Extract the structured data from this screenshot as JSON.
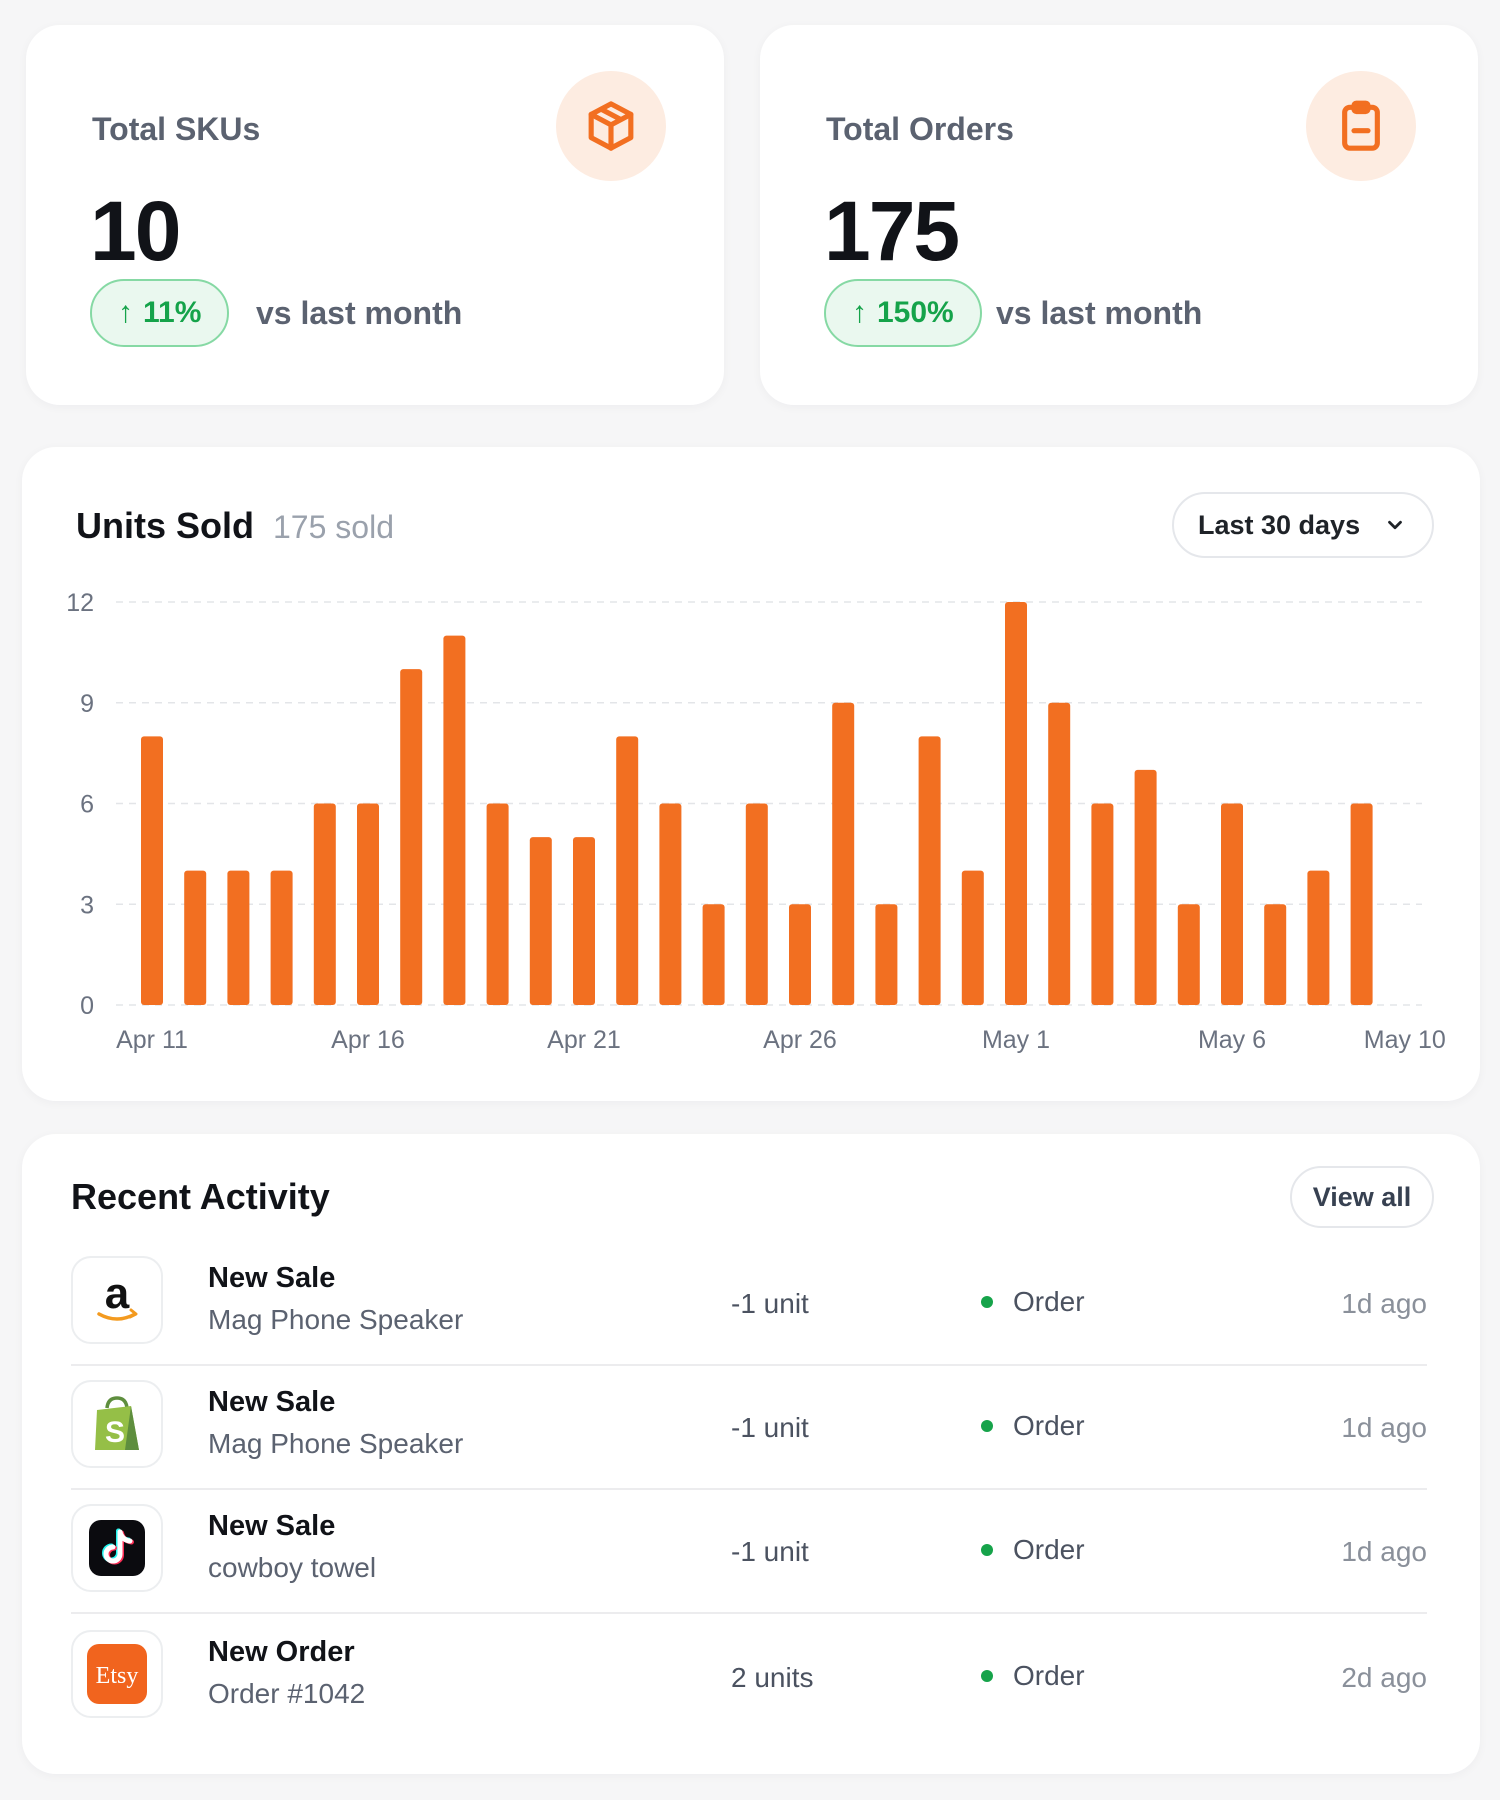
{
  "kpis": [
    {
      "label": "Total SKUs",
      "value": "10",
      "change": "11%",
      "comparison": "vs last month",
      "icon": "box-icon"
    },
    {
      "label": "Total Orders",
      "value": "175",
      "change": "150%",
      "comparison": "vs last month",
      "icon": "clipboard-icon"
    }
  ],
  "chart": {
    "title": "Units Sold",
    "subtitle": "175 sold",
    "range_label": "Last 30 days"
  },
  "chart_data": {
    "type": "bar",
    "title": "Units Sold",
    "categories": [
      "Apr 11",
      "Apr 12",
      "Apr 13",
      "Apr 14",
      "Apr 15",
      "Apr 16",
      "Apr 17",
      "Apr 18",
      "Apr 19",
      "Apr 20",
      "Apr 21",
      "Apr 22",
      "Apr 23",
      "Apr 24",
      "Apr 25",
      "Apr 26",
      "Apr 27",
      "Apr 28",
      "Apr 29",
      "Apr 30",
      "May 1",
      "May 2",
      "May 3",
      "May 4",
      "May 5",
      "May 6",
      "May 7",
      "May 8",
      "May 9",
      "May 10"
    ],
    "values": [
      8,
      4,
      4,
      4,
      6,
      6,
      10,
      11,
      6,
      5,
      5,
      8,
      6,
      3,
      6,
      3,
      9,
      3,
      8,
      4,
      12,
      9,
      6,
      7,
      3,
      6,
      3,
      4,
      6,
      0
    ],
    "x_tick_labels": [
      "Apr 11",
      "Apr 16",
      "Apr 21",
      "Apr 26",
      "May 1",
      "May 6",
      "May 10"
    ],
    "y_ticks": [
      0,
      3,
      6,
      9,
      12
    ],
    "ylim": [
      0,
      12
    ],
    "xlabel": "",
    "ylabel": "",
    "grid": true,
    "bar_color": "#f26f21"
  },
  "activity": {
    "title": "Recent Activity",
    "view_all_label": "View all",
    "items": [
      {
        "logo": "amazon-logo",
        "title": "New Sale",
        "subtitle": "Mag Phone Speaker",
        "qty": "-1 unit",
        "type": "Order",
        "time": "1d ago"
      },
      {
        "logo": "shopify-logo",
        "title": "New Sale",
        "subtitle": "Mag Phone Speaker",
        "qty": "-1 unit",
        "type": "Order",
        "time": "1d ago"
      },
      {
        "logo": "tiktok-logo",
        "title": "New Sale",
        "subtitle": "cowboy towel",
        "qty": "-1 unit",
        "type": "Order",
        "time": "1d ago"
      },
      {
        "logo": "etsy-logo",
        "logo_text": "Etsy",
        "title": "New Order",
        "subtitle": "Order #1042",
        "qty": "2 units",
        "type": "Order",
        "time": "2d ago"
      }
    ]
  },
  "colors": {
    "accent": "#f26f21",
    "positive": "#16a34a",
    "positive_bg": "#eaf8ef"
  }
}
